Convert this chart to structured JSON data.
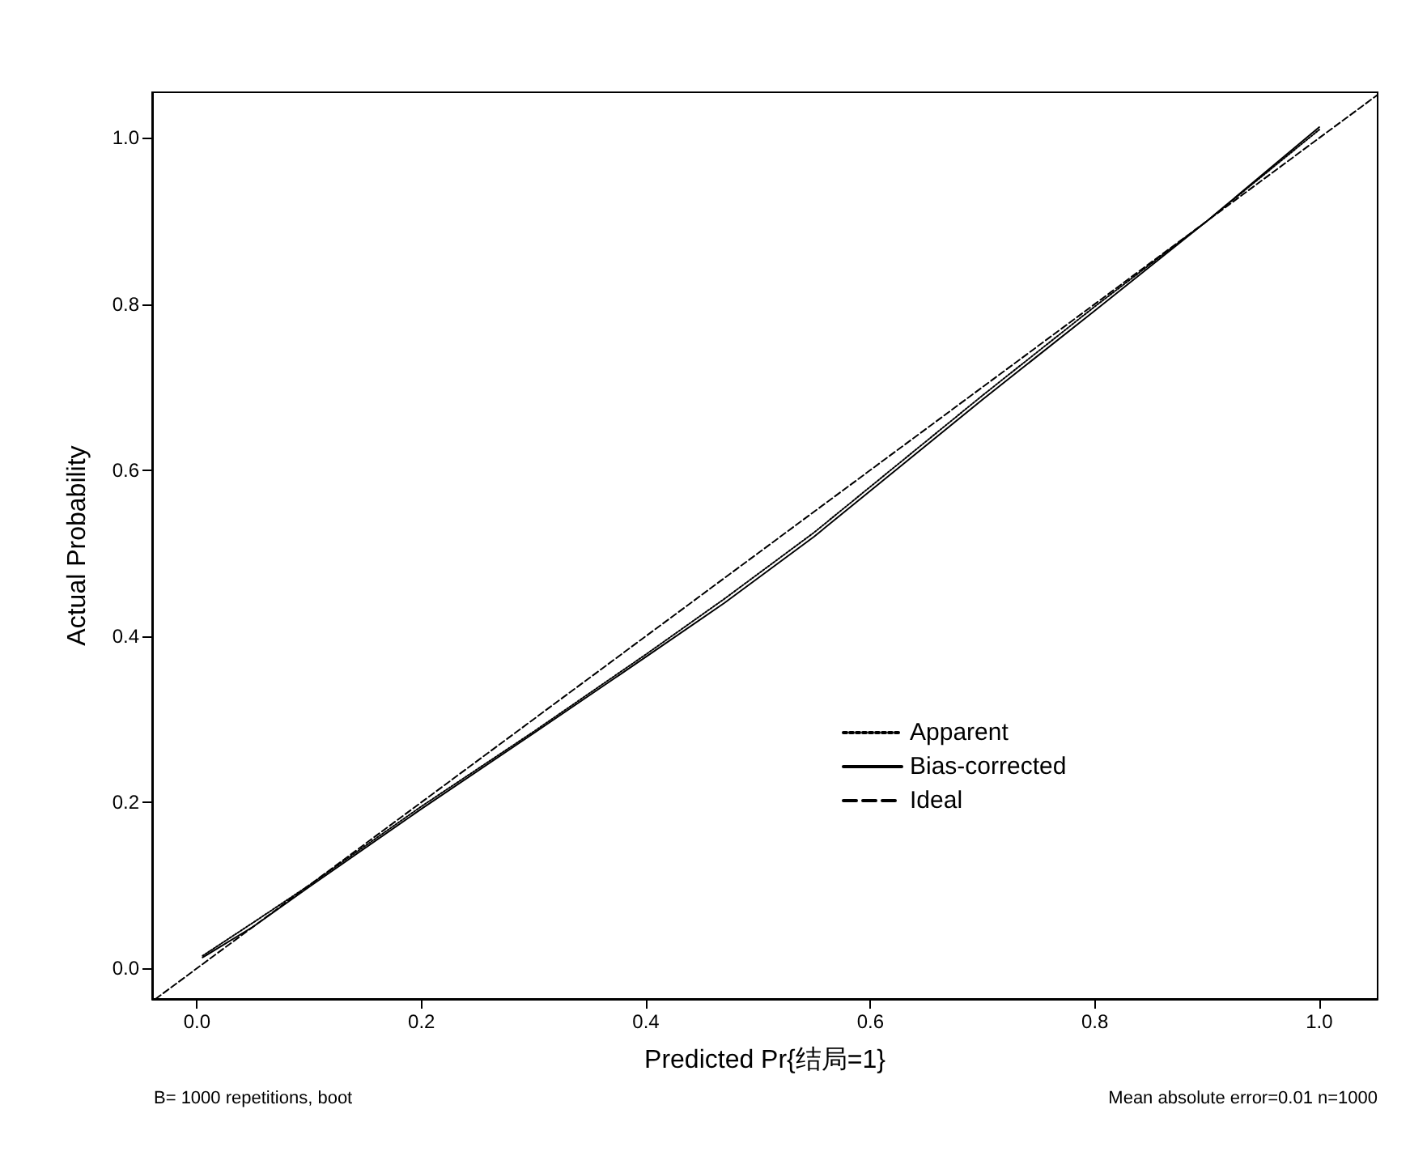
{
  "chart_data": {
    "type": "line",
    "xlabel": "Predicted Pr{结局=1}",
    "ylabel": "Actual Probability",
    "annotations": [
      "B= 1000 repetitions, boot",
      "Mean absolute error=0.01 n=1000"
    ],
    "xlim": [
      -0.04,
      1.052
    ],
    "ylim": [
      -0.037,
      1.055
    ],
    "xticks": [
      {
        "value": 0,
        "label": "0.0"
      },
      0.2,
      0.4,
      0.6,
      0.8,
      {
        "value": 1,
        "label": "1.0"
      }
    ],
    "yticks": [
      {
        "value": 0,
        "label": "0.0"
      },
      0.2,
      0.4,
      0.6,
      0.8,
      {
        "value": 1,
        "label": "1.0"
      }
    ],
    "grid": false,
    "legend": "right",
    "marker": "none",
    "series": [
      {
        "name": "Apparent",
        "color": "#000000",
        "line_style": "dotted",
        "x": [
          0.005,
          0.05,
          0.1,
          0.2,
          0.3,
          0.4,
          0.47,
          0.55,
          0.6,
          0.7,
          0.8,
          0.9,
          1.0
        ],
        "values": [
          0.015,
          0.055,
          0.1,
          0.195,
          0.285,
          0.378,
          0.445,
          0.525,
          0.58,
          0.69,
          0.797,
          0.9,
          1.01
        ]
      },
      {
        "name": "Bias-corrected",
        "color": "#000000",
        "line_style": "solid",
        "x": [
          0.005,
          0.05,
          0.1,
          0.2,
          0.3,
          0.4,
          0.47,
          0.55,
          0.6,
          0.7,
          0.8,
          0.9,
          1.0
        ],
        "values": [
          0.013,
          0.05,
          0.098,
          0.192,
          0.283,
          0.375,
          0.44,
          0.52,
          0.575,
          0.685,
          0.792,
          0.9,
          1.013
        ]
      },
      {
        "name": "Ideal",
        "color": "#000000",
        "line_style": "dashed",
        "x": [
          -0.037,
          1.052
        ],
        "values": [
          -0.037,
          1.052
        ]
      }
    ]
  }
}
